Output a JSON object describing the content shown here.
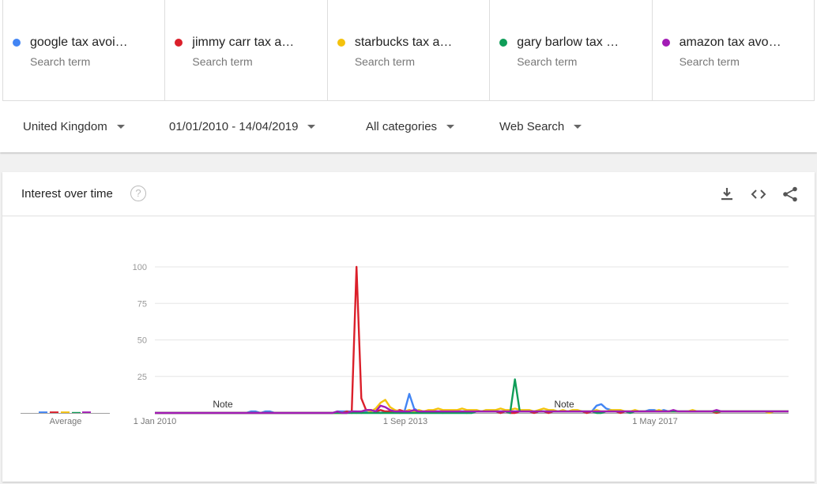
{
  "terms": [
    {
      "label": "google tax avoi…",
      "sub": "Search term",
      "color": "#4285f4"
    },
    {
      "label": "jimmy carr tax a…",
      "sub": "Search term",
      "color": "#db1f2a"
    },
    {
      "label": "starbucks tax a…",
      "sub": "Search term",
      "color": "#f4c20d"
    },
    {
      "label": "gary barlow tax …",
      "sub": "Search term",
      "color": "#0f9d58"
    },
    {
      "label": "amazon tax avo…",
      "sub": "Search term",
      "color": "#a21cb5"
    }
  ],
  "filters": {
    "region": "United Kingdom",
    "dates": "01/01/2010 - 14/04/2019",
    "category": "All categories",
    "search_type": "Web Search"
  },
  "card": {
    "title": "Interest over time",
    "help": "?",
    "icons": [
      "download-icon",
      "embed-icon",
      "share-icon"
    ]
  },
  "chart_data": {
    "type": "line",
    "average_label": "Average",
    "y_ticks": [
      100,
      75,
      50,
      25
    ],
    "ylim": [
      0,
      100
    ],
    "x_tick_labels": [
      "1 Jan 2010",
      "1 Sep 2013",
      "1 May 2017"
    ],
    "annotations": [
      "Note",
      "Note"
    ],
    "averages": [
      {
        "name": "google tax avoi…",
        "value": 1
      },
      {
        "name": "jimmy carr tax a…",
        "value": 1
      },
      {
        "name": "starbucks tax a…",
        "value": 1
      },
      {
        "name": "gary barlow tax …",
        "value": 0
      },
      {
        "name": "amazon tax avo…",
        "value": 1
      }
    ],
    "series": [
      {
        "name": "google tax avoi…",
        "color": "#4285f4",
        "values": [
          0,
          0,
          0,
          0,
          0,
          0,
          0,
          0,
          0,
          0,
          0,
          0,
          0,
          0,
          0,
          0,
          0,
          0,
          0,
          0,
          1,
          1,
          0,
          1,
          1,
          0,
          0,
          0,
          0,
          0,
          0,
          0,
          0,
          0,
          0,
          0,
          0,
          0,
          1,
          1,
          1,
          1,
          1,
          0,
          1,
          2,
          1,
          0,
          1,
          1,
          1,
          0,
          1,
          13,
          3,
          1,
          1,
          1,
          1,
          1,
          0,
          1,
          1,
          1,
          1,
          1,
          0,
          1,
          1,
          1,
          1,
          1,
          0,
          1,
          1,
          1,
          1,
          1,
          1,
          0,
          1,
          1,
          0,
          1,
          1,
          1,
          1,
          1,
          1,
          1,
          0,
          1,
          5,
          6,
          3,
          2,
          1,
          1,
          1,
          1,
          1,
          1,
          1,
          2,
          2,
          1,
          2,
          1,
          1,
          1,
          1,
          1,
          1,
          1,
          1,
          1,
          1,
          1,
          1,
          1,
          1,
          1,
          1,
          1,
          1,
          1,
          1,
          1,
          1,
          1,
          1,
          1,
          1
        ]
      },
      {
        "name": "jimmy carr tax a…",
        "color": "#db1f2a",
        "values": [
          0,
          0,
          0,
          0,
          0,
          0,
          0,
          0,
          0,
          0,
          0,
          0,
          0,
          0,
          0,
          0,
          0,
          0,
          0,
          0,
          0,
          0,
          0,
          0,
          0,
          0,
          0,
          0,
          0,
          0,
          0,
          0,
          0,
          0,
          0,
          0,
          0,
          0,
          0,
          0,
          1,
          0,
          100,
          10,
          2,
          2,
          1,
          2,
          1,
          1,
          1,
          2,
          1,
          2,
          1,
          1,
          1,
          1,
          1,
          1,
          1,
          1,
          1,
          1,
          1,
          0,
          1,
          1,
          1,
          1,
          1,
          1,
          0,
          1,
          0,
          0,
          1,
          1,
          1,
          0,
          1,
          1,
          0,
          1,
          1,
          1,
          1,
          1,
          1,
          1,
          0,
          1,
          1,
          1,
          1,
          1,
          1,
          0,
          1,
          1,
          1,
          1,
          1,
          1,
          1,
          1,
          1,
          1,
          1,
          1,
          1,
          1,
          1,
          1,
          1,
          1,
          1,
          0,
          1,
          1,
          1,
          1,
          1,
          1,
          1,
          1,
          1,
          1,
          1,
          1,
          1,
          1,
          1
        ]
      },
      {
        "name": "starbucks tax a…",
        "color": "#f4c20d",
        "values": [
          0,
          0,
          0,
          0,
          0,
          0,
          0,
          0,
          0,
          0,
          0,
          0,
          0,
          0,
          0,
          0,
          0,
          0,
          0,
          0,
          0,
          0,
          0,
          0,
          0,
          0,
          0,
          0,
          0,
          0,
          0,
          0,
          0,
          0,
          0,
          0,
          0,
          0,
          0,
          0,
          0,
          1,
          0,
          1,
          2,
          1,
          3,
          7,
          9,
          4,
          2,
          1,
          1,
          2,
          1,
          2,
          1,
          2,
          2,
          3,
          2,
          2,
          2,
          2,
          3,
          2,
          2,
          2,
          1,
          2,
          2,
          2,
          3,
          2,
          2,
          3,
          2,
          2,
          2,
          1,
          2,
          3,
          2,
          2,
          1,
          2,
          1,
          2,
          2,
          1,
          1,
          1,
          2,
          1,
          1,
          2,
          2,
          2,
          1,
          1,
          2,
          1,
          1,
          1,
          1,
          2,
          1,
          1,
          1,
          1,
          1,
          1,
          2,
          1,
          1,
          1,
          1,
          1,
          1,
          1,
          1,
          1,
          1,
          1,
          1,
          1,
          1,
          1,
          0,
          1,
          1,
          1,
          1
        ]
      },
      {
        "name": "gary barlow tax …",
        "color": "#0f9d58",
        "values": [
          0,
          0,
          0,
          0,
          0,
          0,
          0,
          0,
          0,
          0,
          0,
          0,
          0,
          0,
          0,
          0,
          0,
          0,
          0,
          0,
          0,
          0,
          0,
          0,
          0,
          0,
          0,
          0,
          0,
          0,
          0,
          0,
          0,
          0,
          0,
          0,
          0,
          0,
          0,
          0,
          0,
          0,
          0,
          0,
          0,
          0,
          0,
          0,
          0,
          0,
          0,
          0,
          0,
          0,
          0,
          0,
          0,
          0,
          0,
          0,
          0,
          0,
          0,
          0,
          0,
          0,
          0,
          1,
          1,
          1,
          1,
          1,
          1,
          1,
          0,
          23,
          1,
          1,
          1,
          1,
          1,
          1,
          1,
          1,
          1,
          1,
          1,
          1,
          1,
          1,
          1,
          1,
          0,
          0,
          1,
          1,
          1,
          1,
          1,
          0,
          1,
          1,
          1,
          1,
          1,
          1,
          1,
          1,
          1,
          1,
          1,
          1,
          1,
          1,
          1,
          1,
          1,
          1,
          1,
          1,
          1,
          1,
          1,
          1,
          1,
          1,
          1,
          1,
          1,
          1,
          1,
          1,
          1
        ]
      },
      {
        "name": "amazon tax avo…",
        "color": "#a21cb5",
        "values": [
          0,
          0,
          0,
          0,
          0,
          0,
          0,
          0,
          0,
          0,
          0,
          0,
          0,
          0,
          0,
          0,
          0,
          0,
          0,
          0,
          0,
          0,
          0,
          0,
          0,
          0,
          0,
          0,
          0,
          0,
          0,
          0,
          0,
          0,
          0,
          0,
          0,
          0,
          1,
          0,
          0,
          1,
          1,
          1,
          2,
          2,
          1,
          5,
          4,
          2,
          1,
          1,
          1,
          1,
          2,
          1,
          1,
          1,
          1,
          1,
          1,
          1,
          1,
          1,
          1,
          1,
          1,
          1,
          1,
          1,
          1,
          1,
          1,
          1,
          1,
          1,
          1,
          1,
          1,
          1,
          1,
          1,
          1,
          1,
          1,
          1,
          1,
          1,
          1,
          1,
          1,
          1,
          1,
          1,
          1,
          1,
          1,
          1,
          1,
          1,
          1,
          1,
          1,
          1,
          1,
          1,
          1,
          1,
          2,
          1,
          1,
          1,
          1,
          1,
          1,
          1,
          1,
          2,
          1,
          1,
          1,
          1,
          1,
          1,
          1,
          1,
          1,
          1,
          1,
          1,
          1,
          1,
          1
        ]
      }
    ]
  }
}
